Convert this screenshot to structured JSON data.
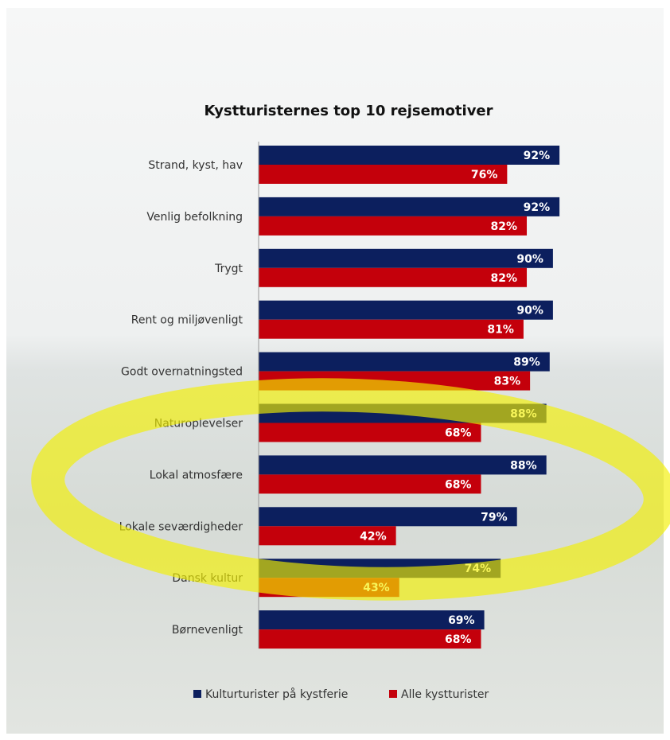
{
  "chart_data": {
    "type": "bar",
    "orientation": "horizontal",
    "title": "Kystturisternes top 10 rejsemotiver",
    "categories": [
      "Strand, kyst, hav",
      "Venlig befolkning",
      "Trygt",
      "Rent og miljøvenligt",
      "Godt overnatningsted",
      "Naturoplevelser",
      "Lokal atmosfære",
      "Lokale seværdigheder",
      "Dansk kultur",
      "Børnevenligt"
    ],
    "series": [
      {
        "name": "Kulturturister på kystferie",
        "color": "#0c1f5e",
        "values": [
          92,
          92,
          90,
          90,
          89,
          88,
          88,
          79,
          74,
          69
        ],
        "value_labels": [
          "92%",
          "92%",
          "90%",
          "90%",
          "89%",
          "88%",
          "88%",
          "79%",
          "74%",
          "69%"
        ]
      },
      {
        "name": "Alle kystturister",
        "color": "#c4000b",
        "values": [
          76,
          82,
          82,
          81,
          83,
          68,
          68,
          42,
          43,
          68
        ],
        "value_labels": [
          "76%",
          "82%",
          "82%",
          "81%",
          "83%",
          "68%",
          "68%",
          "42%",
          "43%",
          "68%"
        ]
      }
    ]
  }
}
